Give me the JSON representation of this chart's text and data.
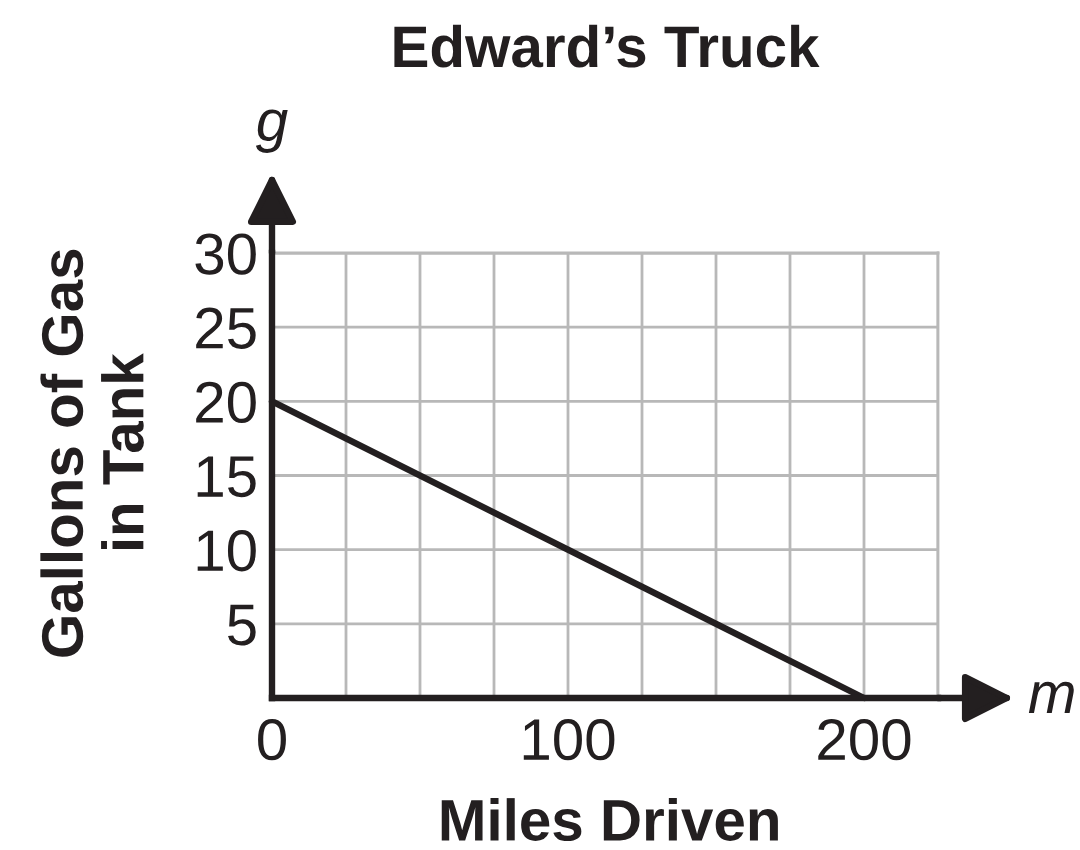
{
  "chart_data": {
    "type": "line",
    "title": "Edward’s Truck",
    "xlabel": "Miles Driven",
    "ylabel": "Gallons of Gas\nin Tank",
    "annotations": [
      "g",
      "m"
    ],
    "x": [
      0,
      200
    ],
    "values": [
      20,
      0
    ],
    "color": "#231f20",
    "xlim": [
      0,
      225
    ],
    "ylim": [
      0,
      30
    ],
    "xticks": [
      0,
      {
        "value": 25,
        "label": null
      },
      {
        "value": 50,
        "label": null
      },
      {
        "value": 75,
        "label": null
      },
      100,
      {
        "value": 125,
        "label": null
      },
      {
        "value": 150,
        "label": null
      },
      {
        "value": 175,
        "label": null
      },
      200,
      {
        "value": 225,
        "label": null
      }
    ],
    "yticks": [
      5,
      10,
      15,
      20,
      25,
      30
    ],
    "grid": true
  }
}
